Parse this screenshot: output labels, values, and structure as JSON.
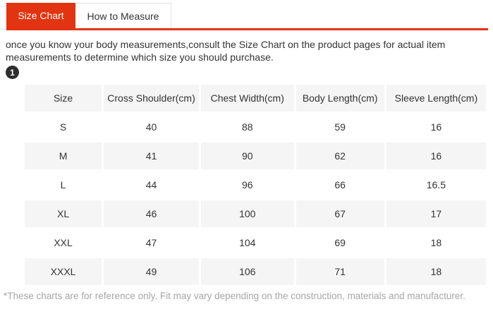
{
  "colors": {
    "accent": "#e23410",
    "row_alt_bg": "#f5f5f5",
    "text": "#333333",
    "footnote_text": "#a6a6a6",
    "badge_bg": "#2e2e2e"
  },
  "tabs": [
    {
      "label": "Size Chart",
      "active": true
    },
    {
      "label": "How to Measure",
      "active": false
    }
  ],
  "intro": "once you know your body measurements,consult the Size Chart on the product pages for actual item measurements to determine which size you should purchase.",
  "step_badge": "1",
  "size_table": {
    "headers": [
      "Size",
      "Cross Shoulder(cm)",
      "Chest Width(cm)",
      "Body Length(cm)",
      "Sleeve Length(cm)"
    ],
    "rows": [
      [
        "S",
        "40",
        "88",
        "59",
        "16"
      ],
      [
        "M",
        "41",
        "90",
        "62",
        "16"
      ],
      [
        "L",
        "44",
        "96",
        "66",
        "16.5"
      ],
      [
        "XL",
        "46",
        "100",
        "67",
        "17"
      ],
      [
        "XXL",
        "47",
        "104",
        "69",
        "18"
      ],
      [
        "XXXL",
        "49",
        "106",
        "71",
        "18"
      ]
    ]
  },
  "footnote": "*These charts are for reference only. Fit may vary depending on the construction, materials and manufacturer."
}
